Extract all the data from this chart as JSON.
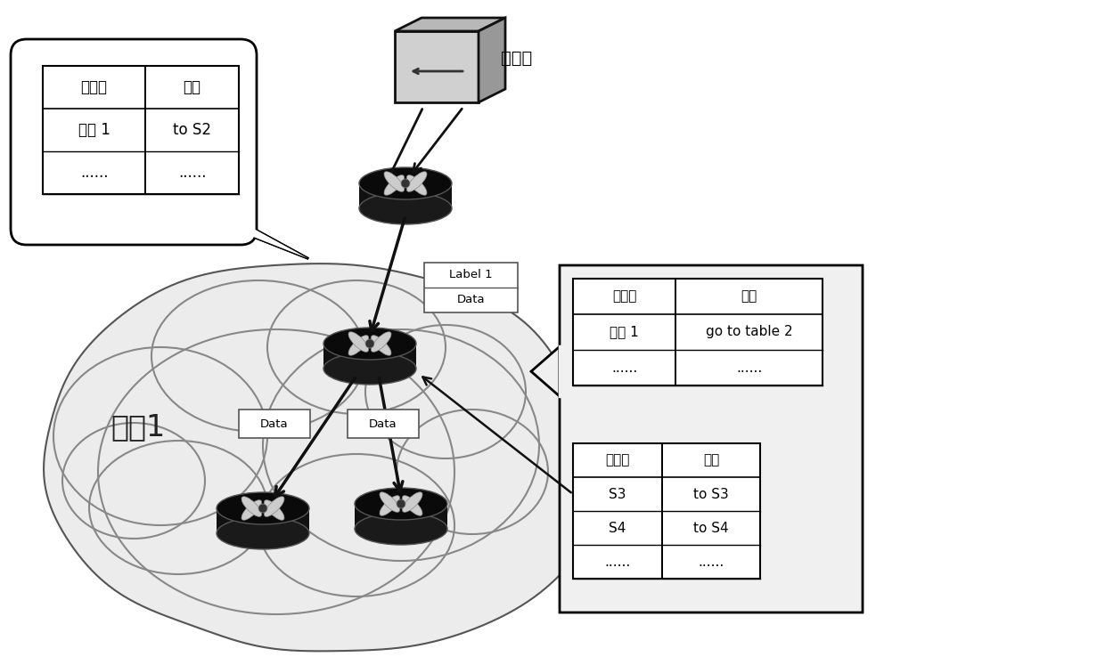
{
  "fig_width": 12.4,
  "fig_height": 7.38,
  "dpi": 100,
  "bg_color": "#ffffff",
  "group_label": "分组1",
  "controller_label": "控制器",
  "table1_title": [
    "匹配域",
    "动作"
  ],
  "table1_rows": [
    [
      "标签 1",
      "to S2"
    ],
    [
      "......",
      "......"
    ]
  ],
  "table2_title": [
    "匹配域",
    "动作"
  ],
  "table2_rows": [
    [
      "标签 1",
      "go to table 2"
    ],
    [
      "......",
      "......"
    ]
  ],
  "table3_title": [
    "匹配域",
    "动作"
  ],
  "table3_rows": [
    [
      "S3",
      "to S3"
    ],
    [
      "S4",
      "to S4"
    ],
    [
      "......",
      "......"
    ]
  ]
}
